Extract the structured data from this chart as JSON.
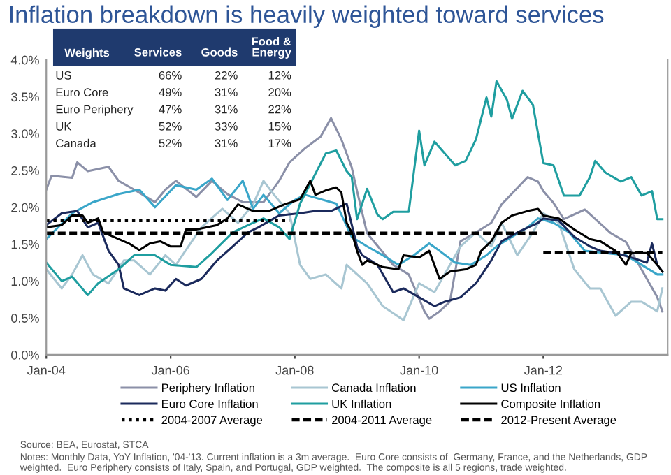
{
  "chart_data": [
    {
      "type": "line",
      "title": "Inflation breakdown is heavily weighted toward services",
      "xlim": [
        "2004-01",
        "2014-01"
      ],
      "ylim": [
        0,
        4
      ],
      "xticks": [
        {
          "value": "2004-01",
          "label": "Jan-04"
        },
        {
          "value": "2006-01",
          "label": "Jan-06"
        },
        {
          "value": "2008-01",
          "label": "Jan-08"
        },
        {
          "value": "2010-01",
          "label": "Jan-10"
        },
        {
          "value": "2012-01",
          "label": "Jan-12"
        }
      ],
      "yticks": [
        {
          "value": 0,
          "label": "0.0%"
        },
        {
          "value": 0.5,
          "label": "0.5%"
        },
        {
          "value": 1,
          "label": "1.0%"
        },
        {
          "value": 1.5,
          "label": "1.5%"
        },
        {
          "value": 2,
          "label": "2.0%"
        },
        {
          "value": 2.5,
          "label": "2.5%"
        },
        {
          "value": 3,
          "label": "3.0%"
        },
        {
          "value": 3.5,
          "label": "3.5%"
        },
        {
          "value": 4,
          "label": "4.0%"
        }
      ],
      "legend": "bottom",
      "series": [
        {
          "name": "Periphery Inflation",
          "color": "#8b90a8",
          "x": [
            "2004-01",
            "2004-02",
            "2004-06",
            "2004-07",
            "2004-09",
            "2005-01",
            "2005-03",
            "2005-06",
            "2005-10",
            "2005-12",
            "2006-02",
            "2006-06",
            "2006-09",
            "2006-12",
            "2007-03",
            "2007-07",
            "2007-10",
            "2007-12",
            "2008-03",
            "2008-06",
            "2008-08",
            "2008-10",
            "2008-12",
            "2009-01",
            "2009-03",
            "2009-08",
            "2009-11",
            "2010-02",
            "2010-03",
            "2010-05",
            "2010-07",
            "2010-09",
            "2010-12",
            "2011-03",
            "2011-05",
            "2011-10",
            "2011-12",
            "2012-01",
            "2012-03",
            "2012-05",
            "2012-09",
            "2012-12",
            "2013-02",
            "2013-05",
            "2013-09",
            "2013-11",
            "2013-12"
          ],
          "values": [
            2.24,
            2.43,
            2.4,
            2.61,
            2.49,
            2.55,
            2.36,
            2.24,
            2.07,
            2.24,
            2.36,
            2.14,
            2.36,
            2.18,
            2.07,
            2.07,
            2.36,
            2.61,
            2.8,
            2.96,
            3.21,
            2.92,
            2.54,
            2.22,
            1.65,
            1.22,
            1.09,
            0.59,
            0.49,
            0.59,
            0.72,
            1.54,
            1.66,
            1.79,
            2.04,
            2.41,
            2.35,
            2.22,
            2.06,
            1.84,
            1.97,
            1.78,
            1.65,
            1.53,
            1.03,
            0.78,
            0.59
          ]
        },
        {
          "name": "Canada Inflation",
          "color": "#a8c6d2",
          "x": [
            "2004-01",
            "2004-04",
            "2004-06",
            "2004-08",
            "2004-10",
            "2005-01",
            "2005-04",
            "2005-06",
            "2005-09",
            "2005-12",
            "2006-02",
            "2006-07",
            "2006-11",
            "2007-02",
            "2007-05",
            "2007-07",
            "2007-09",
            "2007-12",
            "2008-02",
            "2008-04",
            "2008-07",
            "2008-10",
            "2008-11",
            "2009-03",
            "2009-06",
            "2009-10",
            "2010-01",
            "2010-04",
            "2010-07",
            "2010-09",
            "2010-12",
            "2011-03",
            "2011-05",
            "2011-08",
            "2011-11",
            "2012-01",
            "2012-04",
            "2012-07",
            "2012-10",
            "2012-12",
            "2013-03",
            "2013-06",
            "2013-08",
            "2013-11",
            "2013-12"
          ],
          "values": [
            1.16,
            0.9,
            1.09,
            1.35,
            1.09,
            0.97,
            1.28,
            1.28,
            1.09,
            1.35,
            1.22,
            1.73,
            1.98,
            1.79,
            2.04,
            2.36,
            2.17,
            1.92,
            1.22,
            1.03,
            1.09,
            0.9,
            1.22,
            0.97,
            0.66,
            0.47,
            0.97,
            0.85,
            1.22,
            1.47,
            1.66,
            1.47,
            1.79,
            1.35,
            1.66,
            1.92,
            1.79,
            1.16,
            0.9,
            0.9,
            0.53,
            0.72,
            0.72,
            0.59,
            0.9
          ]
        },
        {
          "name": "US Inflation",
          "color": "#3aa6c9",
          "x": [
            "2004-01",
            "2004-06",
            "2004-10",
            "2005-03",
            "2005-07",
            "2005-10",
            "2006-02",
            "2006-06",
            "2006-09",
            "2006-12",
            "2007-03",
            "2007-05",
            "2007-07",
            "2007-10",
            "2008-01",
            "2008-03",
            "2008-09",
            "2008-12",
            "2009-03",
            "2009-06",
            "2009-09",
            "2009-12",
            "2010-03",
            "2010-05",
            "2010-08",
            "2010-11",
            "2011-02",
            "2011-04",
            "2011-07",
            "2011-10",
            "2011-12",
            "2012-03",
            "2012-06",
            "2012-09",
            "2013-01",
            "2013-05",
            "2013-08",
            "2013-11",
            "2013-12"
          ],
          "values": [
            1.57,
            1.92,
            2.07,
            2.18,
            2.24,
            2.0,
            2.3,
            2.24,
            2.39,
            2.1,
            2.36,
            1.98,
            2.17,
            1.92,
            2.1,
            2.17,
            2.05,
            1.6,
            1.47,
            1.35,
            1.22,
            1.35,
            1.51,
            1.41,
            1.25,
            1.22,
            1.35,
            1.47,
            1.6,
            1.73,
            1.85,
            1.79,
            1.66,
            1.41,
            1.38,
            1.35,
            1.22,
            1.09,
            1.09
          ]
        },
        {
          "name": "Euro Core Inflation",
          "color": "#1b2a5c",
          "x": [
            "2004-01",
            "2004-04",
            "2004-07",
            "2004-09",
            "2004-11",
            "2005-01",
            "2005-03",
            "2005-04",
            "2005-07",
            "2005-10",
            "2005-12",
            "2006-02",
            "2006-04",
            "2006-07",
            "2006-10",
            "2007-01",
            "2007-04",
            "2007-06",
            "2007-10",
            "2008-02",
            "2008-05",
            "2008-08",
            "2008-11",
            "2009-01",
            "2009-02",
            "2009-05",
            "2009-08",
            "2009-10",
            "2010-01",
            "2010-04",
            "2010-06",
            "2010-09",
            "2010-12",
            "2011-03",
            "2011-05",
            "2011-08",
            "2011-12",
            "2012-01",
            "2012-04",
            "2012-07",
            "2012-10",
            "2012-12",
            "2013-03",
            "2013-06",
            "2013-09",
            "2013-10",
            "2013-11",
            "2013-12"
          ],
          "values": [
            1.76,
            1.92,
            1.95,
            1.73,
            1.79,
            1.41,
            1.22,
            0.9,
            0.81,
            0.9,
            0.87,
            1.03,
            0.94,
            1.03,
            1.28,
            1.47,
            1.66,
            1.73,
            1.89,
            1.92,
            1.95,
            1.95,
            2.05,
            1.47,
            1.35,
            1.22,
            0.85,
            0.9,
            0.78,
            0.66,
            0.72,
            0.78,
            0.97,
            1.28,
            1.54,
            1.66,
            1.79,
            1.85,
            1.82,
            1.6,
            1.47,
            1.41,
            1.38,
            1.32,
            1.25,
            1.51,
            1.22,
            1.13
          ]
        },
        {
          "name": "UK Inflation",
          "color": "#1f9ea0",
          "x": [
            "2004-01",
            "2004-04",
            "2004-06",
            "2004-09",
            "2004-11",
            "2005-03",
            "2005-06",
            "2005-10",
            "2006-01",
            "2006-06",
            "2006-09",
            "2007-01",
            "2007-05",
            "2007-07",
            "2007-10",
            "2007-12",
            "2008-02",
            "2008-07",
            "2008-09",
            "2008-11",
            "2008-12",
            "2009-01",
            "2009-03",
            "2009-05",
            "2009-06",
            "2009-08",
            "2009-11",
            "2010-01",
            "2010-02",
            "2010-04",
            "2010-06",
            "2010-08",
            "2010-10",
            "2010-12",
            "2011-02",
            "2011-03",
            "2011-04",
            "2011-06",
            "2011-07",
            "2011-09",
            "2011-11",
            "2012-01",
            "2012-03",
            "2012-05",
            "2012-08",
            "2012-10",
            "2012-11",
            "2013-01",
            "2013-04",
            "2013-06",
            "2013-08",
            "2013-10",
            "2013-11",
            "2013-12"
          ],
          "values": [
            1.25,
            1.0,
            1.06,
            0.81,
            0.97,
            1.16,
            1.35,
            1.35,
            1.22,
            1.19,
            1.38,
            1.66,
            1.79,
            1.85,
            1.73,
            1.57,
            2.05,
            2.73,
            2.77,
            2.49,
            2.41,
            1.84,
            2.25,
            1.9,
            1.84,
            1.94,
            1.94,
            3.04,
            2.57,
            2.89,
            2.73,
            2.57,
            2.63,
            2.92,
            3.49,
            3.23,
            3.71,
            3.46,
            3.2,
            3.58,
            3.39,
            2.6,
            2.57,
            2.16,
            2.16,
            2.41,
            2.63,
            2.47,
            2.35,
            2.41,
            2.16,
            2.22,
            1.84,
            1.84
          ]
        },
        {
          "name": "Composite Inflation",
          "color": "#000000",
          "x": [
            "2004-01",
            "2004-04",
            "2004-06",
            "2004-08",
            "2004-09",
            "2004-11",
            "2004-12",
            "2005-03",
            "2005-05",
            "2005-07",
            "2005-09",
            "2005-11",
            "2006-01",
            "2006-03",
            "2006-04",
            "2006-06",
            "2006-10",
            "2006-12",
            "2007-02",
            "2007-05",
            "2007-08",
            "2007-11",
            "2008-02",
            "2008-04",
            "2008-05",
            "2008-07",
            "2008-09",
            "2008-10",
            "2008-11",
            "2008-12",
            "2009-01",
            "2009-02",
            "2009-03",
            "2009-06",
            "2009-09",
            "2009-10",
            "2010-01",
            "2010-03",
            "2010-05",
            "2010-07",
            "2010-10",
            "2010-12",
            "2011-01",
            "2011-03",
            "2011-05",
            "2011-07",
            "2011-10",
            "2011-12",
            "2012-01",
            "2012-04",
            "2012-07",
            "2012-10",
            "2012-12",
            "2013-03",
            "2013-05",
            "2013-06",
            "2013-09",
            "2013-11",
            "2013-12"
          ],
          "values": [
            1.73,
            1.76,
            1.89,
            1.89,
            1.79,
            1.85,
            1.66,
            1.57,
            1.51,
            1.42,
            1.51,
            1.54,
            1.47,
            1.47,
            1.7,
            1.7,
            1.76,
            1.85,
            2.04,
            1.95,
            1.95,
            2.04,
            2.11,
            2.36,
            2.17,
            2.23,
            2.27,
            2.2,
            1.79,
            1.66,
            1.41,
            1.22,
            1.28,
            1.19,
            1.16,
            1.35,
            1.32,
            1.41,
            1.03,
            1.13,
            1.16,
            1.22,
            1.41,
            1.54,
            1.79,
            1.89,
            1.95,
            1.98,
            1.89,
            1.85,
            1.7,
            1.57,
            1.54,
            1.41,
            1.22,
            1.38,
            1.38,
            1.22,
            1.13
          ]
        },
        {
          "name": "2004-2007 Average",
          "color": "#000000",
          "line_style": "dotted",
          "x": [
            "2004-01",
            "2007-12"
          ],
          "values": [
            1.82,
            1.82
          ]
        },
        {
          "name": "2004-2011 Average",
          "color": "#000000",
          "line_style": "dashed",
          "x": [
            "2004-01",
            "2011-12"
          ],
          "values": [
            1.65,
            1.65
          ]
        },
        {
          "name": "2012-Present Average",
          "color": "#000000",
          "line_style": "dashed",
          "x": [
            "2012-01",
            "2013-12"
          ],
          "values": [
            1.39,
            1.39
          ]
        }
      ],
      "annotations": [
        "Source: BEA, Eurostat, STCA",
        "Notes: Monthly Data, YoY Inflation, '04-'13. Current inflation is a 3m average.  Euro Core consists of  Germany, France, and the Netherlands, GDP weighted.  Euro Periphery consists of Italy, Spain, and Portugal, GDP weighted.  The composite is all 5 regions, trade weighted."
      ]
    },
    {
      "type": "other",
      "title": "Weights",
      "categories": [
        "Services",
        "Goods",
        "Food &\nEnergy"
      ],
      "y_categories": [
        "US",
        "Euro Core",
        "Euro Periphery",
        "UK",
        "Canada"
      ],
      "cell_labels": [
        [
          "66%",
          "22%",
          "12%"
        ],
        [
          "49%",
          "31%",
          "20%"
        ],
        [
          "47%",
          "31%",
          "22%"
        ],
        [
          "52%",
          "33%",
          "15%"
        ],
        [
          "52%",
          "31%",
          "17%"
        ]
      ]
    }
  ]
}
